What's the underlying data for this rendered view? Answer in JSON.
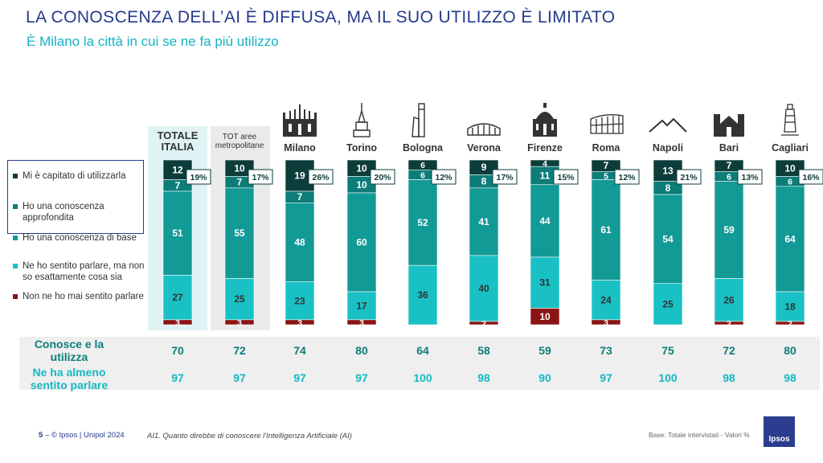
{
  "title": "LA CONOSCENZA DELL’AI È DIFFUSA, MA IL SUO UTILIZZO È LIMITATO",
  "subtitle": "È Milano la città in cui se ne fa più utilizzo",
  "legend": [
    {
      "label": "Mi è capitato di utilizzarla",
      "color": "#0d3d3a"
    },
    {
      "label": "Ho una conoscenza approfondita",
      "color": "#0d7d79"
    },
    {
      "label": "Ho una conoscenza di base",
      "color": "#129a96"
    },
    {
      "label": "Ne ho sentito parlare, ma non so esattamente cosa sia",
      "color": "#19c1c4"
    },
    {
      "label": "Non ne ho mai sentito parlare",
      "color": "#8a1414"
    }
  ],
  "categories": {
    "totale": "TOTALE ITALIA",
    "tot_aree": "TOT aree metropolitane",
    "milano": "Milano",
    "torino": "Torino",
    "bologna": "Bologna",
    "verona": "Verona",
    "firenze": "Firenze",
    "roma": "Roma",
    "napoli": "Napoli",
    "bari": "Bari",
    "cagliari": "Cagliari"
  },
  "icons": [
    "milano-duomo-icon",
    "torino-mole-icon",
    "bologna-towers-icon",
    "verona-arena-icon",
    "firenze-duomo-icon",
    "roma-colosseum-icon",
    "napoli-vesuvio-icon",
    "bari-basilica-icon",
    "cagliari-lighthouse-icon"
  ],
  "summary": {
    "label_a": "Conosce e la utilizza",
    "label_b": "Ne ha almeno sentito parlare",
    "conosce_utilizza": [
      "70",
      "72",
      "74",
      "80",
      "64",
      "58",
      "59",
      "73",
      "75",
      "72",
      "80"
    ],
    "sentito_parlare": [
      "97",
      "97",
      "97",
      "97",
      "100",
      "98",
      "90",
      "97",
      "100",
      "98",
      "98"
    ]
  },
  "footer": {
    "page": "5",
    "credit": "– © Ipsos | Unipol  2024",
    "question": "AI1. Quanto direbbe di conoscere l'Intelligenza Artificiale (AI)",
    "base": "Base: Totale intervistati  - Valori %",
    "logo": "Ipsos"
  },
  "chart_data": {
    "type": "bar",
    "stacked": true,
    "categories": [
      "TOTALE ITALIA",
      "TOT aree metropolitane",
      "Milano",
      "Torino",
      "Bologna",
      "Verona",
      "Firenze",
      "Roma",
      "Napoli",
      "Bari",
      "Cagliari"
    ],
    "series": [
      {
        "name": "Mi è capitato di utilizzarla",
        "values": [
          12,
          10,
          19,
          10,
          6,
          9,
          4,
          7,
          13,
          7,
          10
        ]
      },
      {
        "name": "Ho una conoscenza approfondita",
        "values": [
          7,
          7,
          7,
          10,
          6,
          8,
          11,
          5,
          8,
          6,
          6
        ]
      },
      {
        "name": "Ho una conoscenza di base",
        "values": [
          51,
          55,
          48,
          60,
          52,
          41,
          44,
          61,
          54,
          59,
          64
        ]
      },
      {
        "name": "Ne ho sentito parlare, ma non so esattamente cosa sia",
        "values": [
          27,
          25,
          23,
          17,
          36,
          40,
          31,
          24,
          25,
          26,
          18
        ]
      },
      {
        "name": "Non ne ho mai sentito parlare",
        "values": [
          3,
          3,
          3,
          3,
          0,
          2,
          10,
          3,
          0,
          2,
          2
        ]
      }
    ],
    "callouts": [
      "19%",
      "17%",
      "26%",
      "20%",
      "12%",
      "17%",
      "15%",
      "12%",
      "21%",
      "13%",
      "16%"
    ],
    "ylim": [
      0,
      100
    ]
  }
}
